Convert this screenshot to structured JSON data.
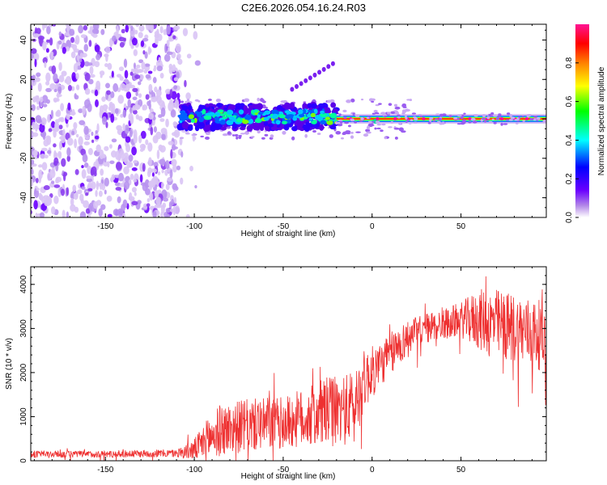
{
  "title": "C2E6.2026.054.16.24.R03",
  "chart_data": [
    {
      "type": "heatmap",
      "title": "C2E6.2026.054.16.24.R03",
      "xlabel": "Height of straight line (km)",
      "ylabel": "Frequency (Hz)",
      "xlim": [
        -192,
        98
      ],
      "ylim": [
        -50,
        48
      ],
      "xticks": [
        -150,
        -100,
        -50,
        0,
        50
      ],
      "xtick_labels": [
        "-150",
        "-100",
        "-50",
        "0",
        "50"
      ],
      "yticks": [
        -40,
        -20,
        0,
        20,
        40
      ],
      "ytick_labels": [
        "-40",
        "-20",
        "0",
        "20",
        "40"
      ],
      "colorbar": {
        "label": "Normalized spectral amplitude",
        "range": [
          0,
          1
        ],
        "ticks": [
          0.0,
          0.2,
          0.4,
          0.6,
          0.8
        ],
        "tick_labels": [
          "0.0",
          "0.2",
          "0.4",
          "0.6",
          "0.8"
        ],
        "colormap": [
          "#ffffff",
          "#8a2be2",
          "#0000ff",
          "#00ffff",
          "#00ff00",
          "#ffff00",
          "#ff8000",
          "#ff0000",
          "#ff1493"
        ]
      },
      "regions": [
        {
          "name": "noise",
          "x": [
            -192,
            -108
          ],
          "y": [
            -50,
            48
          ],
          "amplitude": 0.05
        },
        {
          "name": "echo-band",
          "x": [
            -108,
            -20
          ],
          "center_freq": 0,
          "spread_hz": 6,
          "amplitude": 0.4
        },
        {
          "name": "ground-line",
          "x": [
            -20,
            98
          ],
          "freq": 0,
          "amplitude": 0.95
        },
        {
          "name": "streak",
          "x": [
            -45,
            -22
          ],
          "freq_range": [
            15,
            28
          ],
          "amplitude": 0.1
        }
      ]
    },
    {
      "type": "line",
      "xlabel": "Height of straight line (km)",
      "ylabel": "SNR (10 * v/v)",
      "xlim": [
        -192,
        98
      ],
      "ylim": [
        0,
        4400
      ],
      "xticks": [
        -150,
        -100,
        -50,
        0,
        50
      ],
      "xtick_labels": [
        "-150",
        "-100",
        "-50",
        "0",
        "50"
      ],
      "yticks": [
        0,
        1000,
        2000,
        3000,
        4000
      ],
      "ytick_labels": [
        "0",
        "1000",
        "2000",
        "3000",
        "4000"
      ],
      "color": "#ee3030",
      "series": [
        {
          "name": "SNR",
          "envelope_x": [
            -192,
            -150,
            -110,
            -100,
            -92,
            -85,
            -70,
            -50,
            -35,
            -25,
            -15,
            -10,
            -5,
            0,
            5,
            10,
            20,
            30,
            40,
            50,
            60,
            70,
            80,
            90,
            98
          ],
          "envelope_y": [
            150,
            150,
            170,
            250,
            500,
            700,
            800,
            850,
            1000,
            1100,
            1150,
            1200,
            1800,
            2000,
            2200,
            2400,
            2800,
            3000,
            3100,
            3200,
            3200,
            3100,
            3000,
            2900,
            2800
          ],
          "noise_amp": [
            80,
            80,
            90,
            250,
            500,
            600,
            600,
            600,
            700,
            800,
            800,
            900,
            700,
            600,
            500,
            500,
            400,
            350,
            350,
            400,
            700,
            800,
            800,
            800,
            800
          ]
        }
      ]
    }
  ]
}
